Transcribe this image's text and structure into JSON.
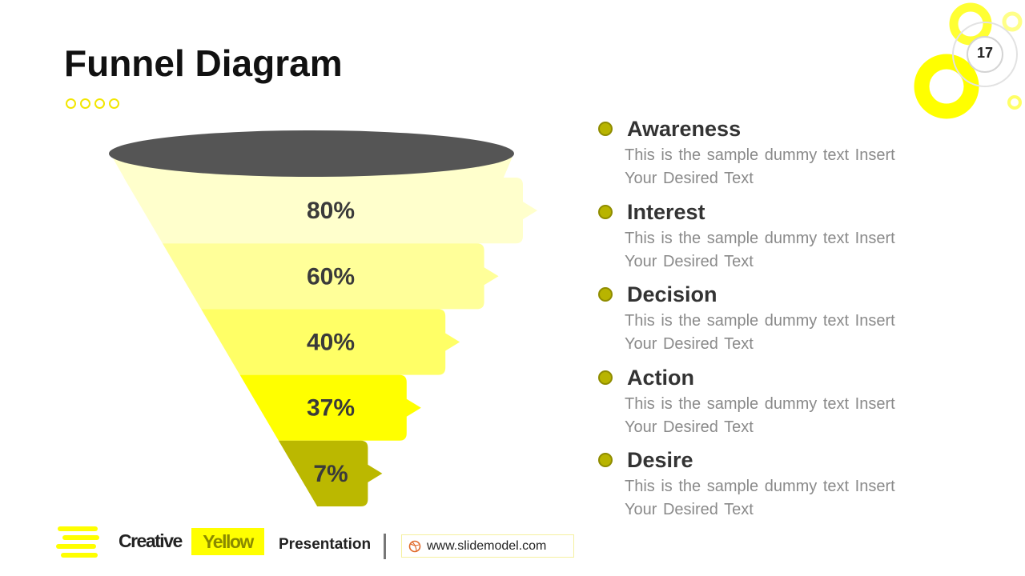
{
  "slide": {
    "title": "Funnel Diagram",
    "page_number": "17"
  },
  "colors": {
    "accent": "#ffff00",
    "funnel_top": "#555555",
    "stage_colors": [
      "#ffffcc",
      "#ffff99",
      "#ffff66",
      "#ffff00",
      "#bbb800"
    ]
  },
  "chart_data": {
    "type": "funnel",
    "stages": [
      {
        "label": "80%",
        "value": 80
      },
      {
        "label": "60%",
        "value": 60
      },
      {
        "label": "40%",
        "value": 40
      },
      {
        "label": "37%",
        "value": 37
      },
      {
        "label": "7%",
        "value": 7
      }
    ]
  },
  "legend": [
    {
      "title": "Awareness",
      "desc": "This is the sample dummy  text Insert Your Desired Text"
    },
    {
      "title": "Interest",
      "desc": "This is the sample dummy  text Insert Your Desired Text"
    },
    {
      "title": "Decision",
      "desc": "This is the sample dummy  text Insert Your Desired Text"
    },
    {
      "title": "Action",
      "desc": "This is the sample dummy  text Insert Your Desired Text"
    },
    {
      "title": "Desire",
      "desc": "This is the sample dummy  text Insert Your Desired Text"
    }
  ],
  "footer": {
    "brand_part1": "Creative",
    "brand_part2": "Yellow",
    "presentation": "Presentation",
    "url": "www.slidemodel.com",
    "url_icon": "dribbble-icon"
  }
}
